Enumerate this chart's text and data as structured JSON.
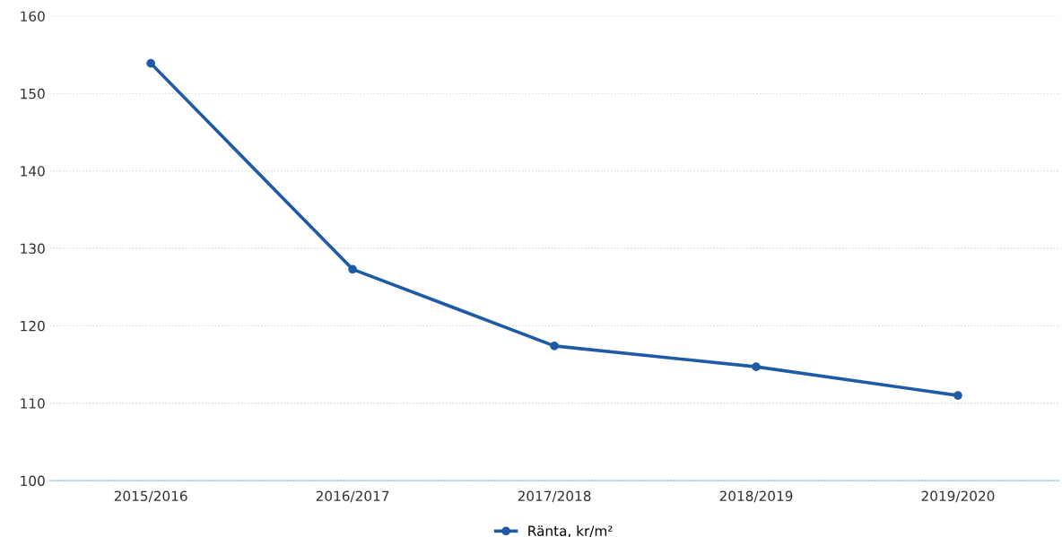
{
  "chart_data": {
    "type": "line",
    "categories": [
      "2015/2016",
      "2016/2017",
      "2017/2018",
      "2018/2019",
      "2019/2020"
    ],
    "series": [
      {
        "name": "Ränta, kr/m²",
        "color": "#1f5aa6",
        "values": [
          153.9,
          127.3,
          117.4,
          114.7,
          111.0
        ]
      }
    ],
    "ylim": [
      100,
      160
    ],
    "yticks": [
      100,
      110,
      120,
      130,
      140,
      150,
      160
    ],
    "grid": "y",
    "legend": "bottom",
    "marker": "circle",
    "line_style": "solid"
  }
}
